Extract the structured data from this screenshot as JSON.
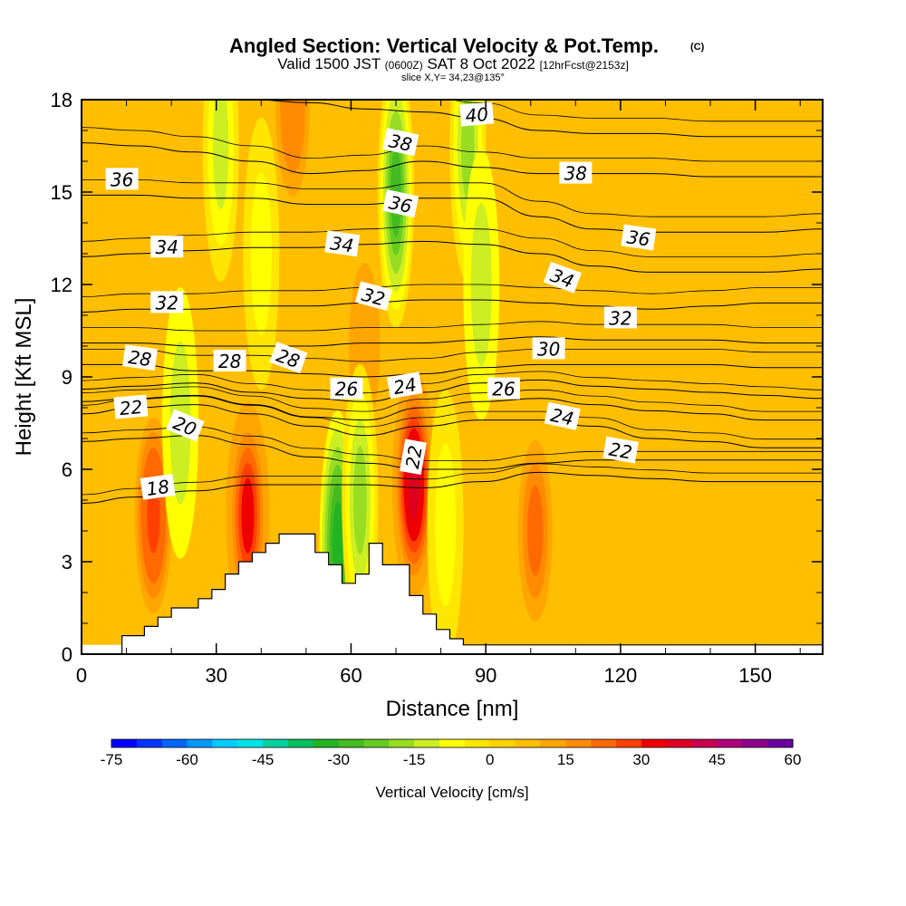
{
  "chart_data": {
    "type": "heatmap",
    "title": "Angled Section: Vertical Velocity & Pot.Temp.",
    "title_unit": "(C)",
    "subtitle_pre": "Valid 1500 JST",
    "subtitle_z": "(0600Z)",
    "subtitle_date": "SAT 8 Oct 2022",
    "subtitle_run": "[12hrFcst@2153z]",
    "slice_label": "slice X,Y= 34,23@135°",
    "xlabel": "Distance [nm]",
    "ylabel": "Height [Kft MSL]",
    "xlim": [
      0,
      165
    ],
    "ylim": [
      0,
      18
    ],
    "x_ticks": [
      "0",
      "30",
      "60",
      "90",
      "120",
      "150"
    ],
    "y_ticks": [
      "0",
      "3",
      "6",
      "9",
      "12",
      "15",
      "18"
    ],
    "colorbar": {
      "label": "Vertical Velocity [cm/s]",
      "ticks": [
        "-75",
        "-60",
        "-45",
        "-30",
        "-15",
        "0",
        "15",
        "30",
        "45",
        "60"
      ],
      "range": [
        -75,
        60
      ],
      "colors": [
        "#0000ff",
        "#0033ff",
        "#0066ff",
        "#0099ff",
        "#00ccff",
        "#00e5e5",
        "#00d0a0",
        "#00c060",
        "#22b422",
        "#44bb22",
        "#66cc22",
        "#99dd22",
        "#ccee22",
        "#ffff00",
        "#ffe600",
        "#ffd200",
        "#ffbe00",
        "#ffa500",
        "#ff8c00",
        "#ff6a00",
        "#ff4000",
        "#ee0000",
        "#dd0022",
        "#c80050",
        "#b0007a",
        "#8c008c",
        "#6a00a0"
      ]
    },
    "updraft_cores": [
      {
        "x": 16,
        "y": 4.5,
        "w": 28
      },
      {
        "x": 37,
        "y": 4.5,
        "w": 30
      },
      {
        "x": 74,
        "y": 5.5,
        "w": 38
      },
      {
        "x": 101,
        "y": 4.0,
        "w": 20
      },
      {
        "x": 47,
        "y": 17.8,
        "w": 18
      },
      {
        "x": 63,
        "y": 10.0,
        "w": 14
      }
    ],
    "downdraft_cores": [
      {
        "x": 57,
        "y": 3.5,
        "w": -32
      },
      {
        "x": 62,
        "y": 5.0,
        "w": -18
      },
      {
        "x": 70,
        "y": 15.0,
        "w": -28
      },
      {
        "x": 86,
        "y": 16.5,
        "w": -20
      },
      {
        "x": 89,
        "y": 12.0,
        "w": -12
      },
      {
        "x": 31,
        "y": 16.5,
        "w": -14
      },
      {
        "x": 40,
        "y": 13.0,
        "w": -10
      },
      {
        "x": 22,
        "y": 7.5,
        "w": -12
      },
      {
        "x": 81,
        "y": 4.2,
        "w": -10
      }
    ],
    "terrain": {
      "x": [
        9,
        9,
        14,
        14,
        17,
        17,
        20,
        20,
        26,
        26,
        29,
        29,
        32,
        32,
        35,
        35,
        38,
        38,
        41,
        41,
        44,
        44,
        52,
        52,
        55,
        55,
        58,
        58,
        61,
        61,
        64,
        64,
        67,
        67,
        73,
        73,
        76,
        76,
        79,
        79,
        82,
        82,
        85,
        85,
        165
      ],
      "y": [
        0.3,
        0.6,
        0.6,
        0.9,
        0.9,
        1.2,
        1.2,
        1.5,
        1.5,
        1.8,
        1.8,
        2.1,
        2.1,
        2.6,
        2.6,
        3.0,
        3.0,
        3.3,
        3.3,
        3.6,
        3.6,
        3.9,
        3.9,
        3.3,
        3.3,
        2.9,
        2.9,
        2.3,
        2.3,
        2.6,
        2.6,
        3.6,
        3.6,
        2.9,
        2.9,
        1.9,
        1.9,
        1.3,
        1.3,
        0.8,
        0.8,
        0.5,
        0.5,
        0.3,
        0.3
      ]
    },
    "isotherms": [
      {
        "value": 18,
        "y": [
          4.9,
          5.1,
          5.3,
          5.5,
          5.5,
          5.5,
          5.4,
          5.6,
          5.9,
          5.8,
          5.7,
          5.6,
          5.6,
          5.6
        ]
      },
      {
        "value": 20,
        "y": [
          6.9,
          7.0,
          7.1,
          6.8,
          6.4,
          6.2,
          6.0,
          6.0,
          6.2,
          6.3,
          6.3,
          6.3,
          6.3,
          6.3
        ]
      },
      {
        "value": 22,
        "y": [
          7.8,
          8.0,
          8.1,
          7.8,
          7.4,
          7.1,
          7.4,
          7.6,
          7.6,
          7.4,
          7.0,
          6.9,
          6.7,
          6.7
        ]
      },
      {
        "value": 24,
        "y": [
          8.2,
          8.3,
          8.4,
          8.1,
          7.7,
          7.6,
          8.0,
          8.2,
          8.3,
          8.1,
          7.9,
          7.8,
          7.6,
          7.6
        ]
      },
      {
        "value": 26,
        "y": [
          8.6,
          8.7,
          8.8,
          8.5,
          8.3,
          8.2,
          8.5,
          8.8,
          8.9,
          8.7,
          8.6,
          8.5,
          8.4,
          8.3
        ]
      },
      {
        "value": 28,
        "y": [
          9.4,
          9.4,
          9.2,
          9.2,
          9.1,
          9.0,
          9.1,
          9.3,
          9.4,
          9.4,
          9.4,
          9.4,
          9.3,
          9.3
        ]
      },
      {
        "value": 30,
        "y": [
          10.1,
          10.1,
          10.0,
          10.0,
          10.0,
          10.1,
          10.1,
          10.2,
          10.3,
          10.2,
          10.2,
          10.2,
          10.1,
          10.1
        ]
      },
      {
        "value": 32,
        "y": [
          11.1,
          11.2,
          11.2,
          11.3,
          11.3,
          11.4,
          11.5,
          11.5,
          11.4,
          11.3,
          11.2,
          11.3,
          11.4,
          11.4
        ]
      },
      {
        "value": 34,
        "y": [
          12.9,
          13.0,
          13.1,
          13.2,
          13.2,
          13.3,
          13.4,
          13.3,
          13.0,
          12.6,
          12.4,
          12.4,
          12.4,
          12.5
        ]
      },
      {
        "value": 36,
        "y": [
          14.9,
          14.9,
          14.8,
          14.8,
          14.6,
          14.6,
          14.8,
          14.8,
          14.2,
          13.8,
          13.7,
          13.7,
          13.7,
          13.8
        ]
      },
      {
        "value": 38,
        "y": [
          16.6,
          16.5,
          16.3,
          16.0,
          15.6,
          15.7,
          16.0,
          15.8,
          15.6,
          15.6,
          15.6,
          15.5,
          15.5,
          15.5
        ]
      },
      {
        "value": 40,
        "y": [
          18.0,
          18.0,
          18.0,
          18.0,
          17.9,
          17.7,
          17.6,
          17.4,
          17.0,
          16.9,
          16.9,
          16.8,
          16.8,
          16.8
        ]
      }
    ],
    "contour_x": [
      0,
      12,
      25,
      38,
      51,
      63,
      76,
      89,
      102,
      114,
      127,
      140,
      152,
      165
    ],
    "contour_labels": [
      {
        "text": "18",
        "x": 17,
        "y": 5.4,
        "angle": -8
      },
      {
        "text": "20",
        "x": 23,
        "y": 7.4,
        "angle": 22
      },
      {
        "text": "22",
        "x": 11,
        "y": 8.0,
        "angle": -5
      },
      {
        "text": "22",
        "x": 74,
        "y": 6.4,
        "angle": -80
      },
      {
        "text": "22",
        "x": 120,
        "y": 6.6,
        "angle": 10
      },
      {
        "text": "24",
        "x": 72,
        "y": 8.7,
        "angle": -10
      },
      {
        "text": "24",
        "x": 107,
        "y": 7.7,
        "angle": 12
      },
      {
        "text": "26",
        "x": 59,
        "y": 8.6,
        "angle": 0
      },
      {
        "text": "26",
        "x": 94,
        "y": 8.6,
        "angle": 0
      },
      {
        "text": "28",
        "x": 13,
        "y": 9.6,
        "angle": 8
      },
      {
        "text": "28",
        "x": 33,
        "y": 9.5,
        "angle": 0
      },
      {
        "text": "28",
        "x": 46,
        "y": 9.6,
        "angle": 20
      },
      {
        "text": "30",
        "x": 104,
        "y": 9.9,
        "angle": 0
      },
      {
        "text": "32",
        "x": 19,
        "y": 11.4,
        "angle": 0
      },
      {
        "text": "32",
        "x": 65,
        "y": 11.6,
        "angle": 15
      },
      {
        "text": "32",
        "x": 120,
        "y": 10.9,
        "angle": 0
      },
      {
        "text": "34",
        "x": 19,
        "y": 13.2,
        "angle": 0
      },
      {
        "text": "34",
        "x": 58,
        "y": 13.3,
        "angle": 8
      },
      {
        "text": "34",
        "x": 107,
        "y": 12.2,
        "angle": 20
      },
      {
        "text": "36",
        "x": 9,
        "y": 15.4,
        "angle": 0
      },
      {
        "text": "36",
        "x": 71,
        "y": 14.6,
        "angle": 12
      },
      {
        "text": "36",
        "x": 124,
        "y": 13.5,
        "angle": 8
      },
      {
        "text": "38",
        "x": 71,
        "y": 16.6,
        "angle": 12
      },
      {
        "text": "38",
        "x": 110,
        "y": 15.6,
        "angle": 0
      },
      {
        "text": "40",
        "x": 88,
        "y": 17.5,
        "angle": -5
      }
    ]
  }
}
